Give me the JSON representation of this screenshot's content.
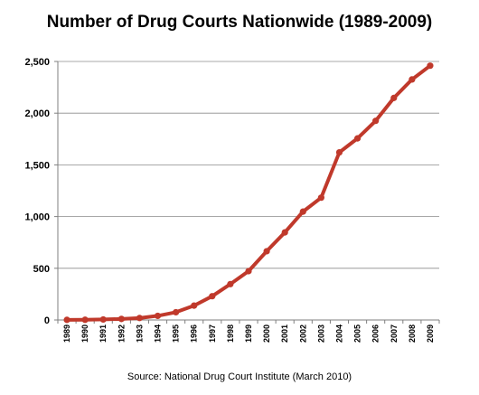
{
  "chart_data": {
    "type": "line",
    "title": "Number of Drug Courts Nationwide (1989-2009)",
    "source": "Source: National Drug Court Institute (March 2010)",
    "xlabel": "",
    "ylabel": "",
    "ylim": [
      0,
      2500
    ],
    "yticks": [
      0,
      500,
      1000,
      1500,
      2000,
      2500
    ],
    "ytick_labels": [
      "0",
      "500",
      "1,000",
      "1,500",
      "2,000",
      "2,500"
    ],
    "grid": true,
    "legend": "none",
    "line_color": "#c0392b",
    "x": [
      "1989",
      "1990",
      "1991",
      "1992",
      "1993",
      "1994",
      "1995",
      "1996",
      "1997",
      "1998",
      "1999",
      "2000",
      "2001",
      "2002",
      "2003",
      "2004",
      "2005",
      "2006",
      "2007",
      "2008",
      "2009"
    ],
    "series": [
      {
        "values": [
          1,
          2,
          5,
          10,
          19,
          40,
          75,
          139,
          230,
          347,
          472,
          665,
          847,
          1048,
          1183,
          1621,
          1756,
          1926,
          2147,
          2326,
          2459
        ]
      }
    ]
  }
}
